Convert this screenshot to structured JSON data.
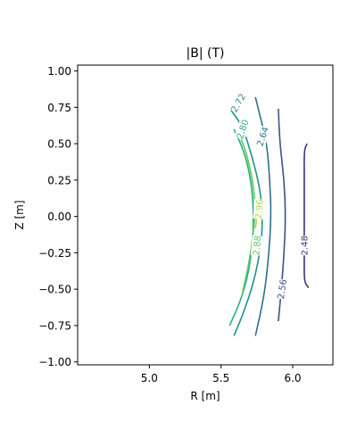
{
  "chart_data": {
    "type": "contour",
    "title": "|B| (T)",
    "xlabel": "R [m]",
    "ylabel": "Z [m]",
    "xlim": [
      4.5,
      6.28
    ],
    "ylim": [
      -1.02,
      1.04
    ],
    "xticks": [
      {
        "value": 5.0,
        "label": "5.0"
      },
      {
        "value": 5.5,
        "label": "5.5"
      },
      {
        "value": 6.0,
        "label": "6.0"
      }
    ],
    "yticks": [
      {
        "value": 1.0,
        "label": "1.00"
      },
      {
        "value": 0.75,
        "label": "0.75"
      },
      {
        "value": 0.5,
        "label": "0.50"
      },
      {
        "value": 0.25,
        "label": "0.25"
      },
      {
        "value": 0.0,
        "label": "0.00"
      },
      {
        "value": -0.25,
        "label": "−0.25"
      },
      {
        "value": -0.5,
        "label": "−0.50"
      },
      {
        "value": -0.75,
        "label": "−0.75"
      },
      {
        "value": -1.0,
        "label": "−1.00"
      }
    ],
    "grid": false,
    "series": [
      {
        "name": "2.48",
        "color": "#472d7b",
        "points": [
          [
            6.1,
            0.5
          ],
          [
            6.08,
            0.46
          ],
          [
            6.08,
            0.3
          ],
          [
            6.08,
            0.1
          ],
          [
            6.08,
            -0.1
          ],
          [
            6.08,
            -0.3
          ],
          [
            6.08,
            -0.45
          ],
          [
            6.11,
            -0.49
          ]
        ],
        "label_at": [
          6.08,
          -0.2
        ],
        "label_rot": -90
      },
      {
        "name": "2.56",
        "color": "#3b528b",
        "points": [
          [
            5.9,
            0.74
          ],
          [
            5.91,
            0.5
          ],
          [
            5.94,
            0.25
          ],
          [
            5.95,
            0.0
          ],
          [
            5.94,
            -0.25
          ],
          [
            5.92,
            -0.5
          ],
          [
            5.9,
            -0.72
          ]
        ],
        "label_at": [
          5.925,
          -0.5
        ],
        "label_rot": -82
      },
      {
        "name": "2.64",
        "color": "#2c728e",
        "points": [
          [
            5.74,
            0.82
          ],
          [
            5.77,
            0.7
          ],
          [
            5.82,
            0.5
          ],
          [
            5.84,
            0.25
          ],
          [
            5.85,
            0.0
          ],
          [
            5.83,
            -0.3
          ],
          [
            5.8,
            -0.55
          ],
          [
            5.74,
            -0.82
          ]
        ],
        "label_at": [
          5.79,
          0.55
        ],
        "label_rot": -72
      },
      {
        "name": "2.72",
        "color": "#21918c",
        "points": [
          [
            5.57,
            0.73
          ],
          [
            5.65,
            0.62
          ],
          [
            5.72,
            0.4
          ],
          [
            5.77,
            0.2
          ],
          [
            5.79,
            0.0
          ],
          [
            5.78,
            -0.2
          ],
          [
            5.73,
            -0.45
          ],
          [
            5.65,
            -0.68
          ],
          [
            5.59,
            -0.82
          ]
        ],
        "label_at": [
          5.62,
          0.78
        ],
        "label_rot": -60
      },
      {
        "name": "2.80",
        "color": "#28ae80",
        "points": [
          [
            5.56,
            -0.75
          ],
          [
            5.65,
            -0.55
          ],
          [
            5.71,
            -0.3
          ],
          [
            5.73,
            0.0
          ],
          [
            5.71,
            0.25
          ],
          [
            5.66,
            0.45
          ],
          [
            5.59,
            0.6
          ]
        ],
        "label_at": [
          5.65,
          0.6
        ],
        "label_rot": -72
      },
      {
        "name": "2.88",
        "color": "#5ec962",
        "points": [
          [
            5.65,
            -0.52
          ],
          [
            5.7,
            -0.3
          ],
          [
            5.74,
            0.0
          ],
          [
            5.73,
            0.2
          ],
          [
            5.68,
            0.43
          ],
          [
            5.64,
            0.53
          ]
        ],
        "label_at": [
          5.75,
          -0.2
        ],
        "label_rot": -85
      },
      {
        "name": "2.96",
        "color": "#addc30",
        "points": [
          [
            5.74,
            -0.08
          ],
          [
            5.75,
            0.0
          ],
          [
            5.75,
            0.08
          ]
        ],
        "label_at": [
          5.765,
          0.05
        ],
        "label_rot": -85
      }
    ]
  }
}
